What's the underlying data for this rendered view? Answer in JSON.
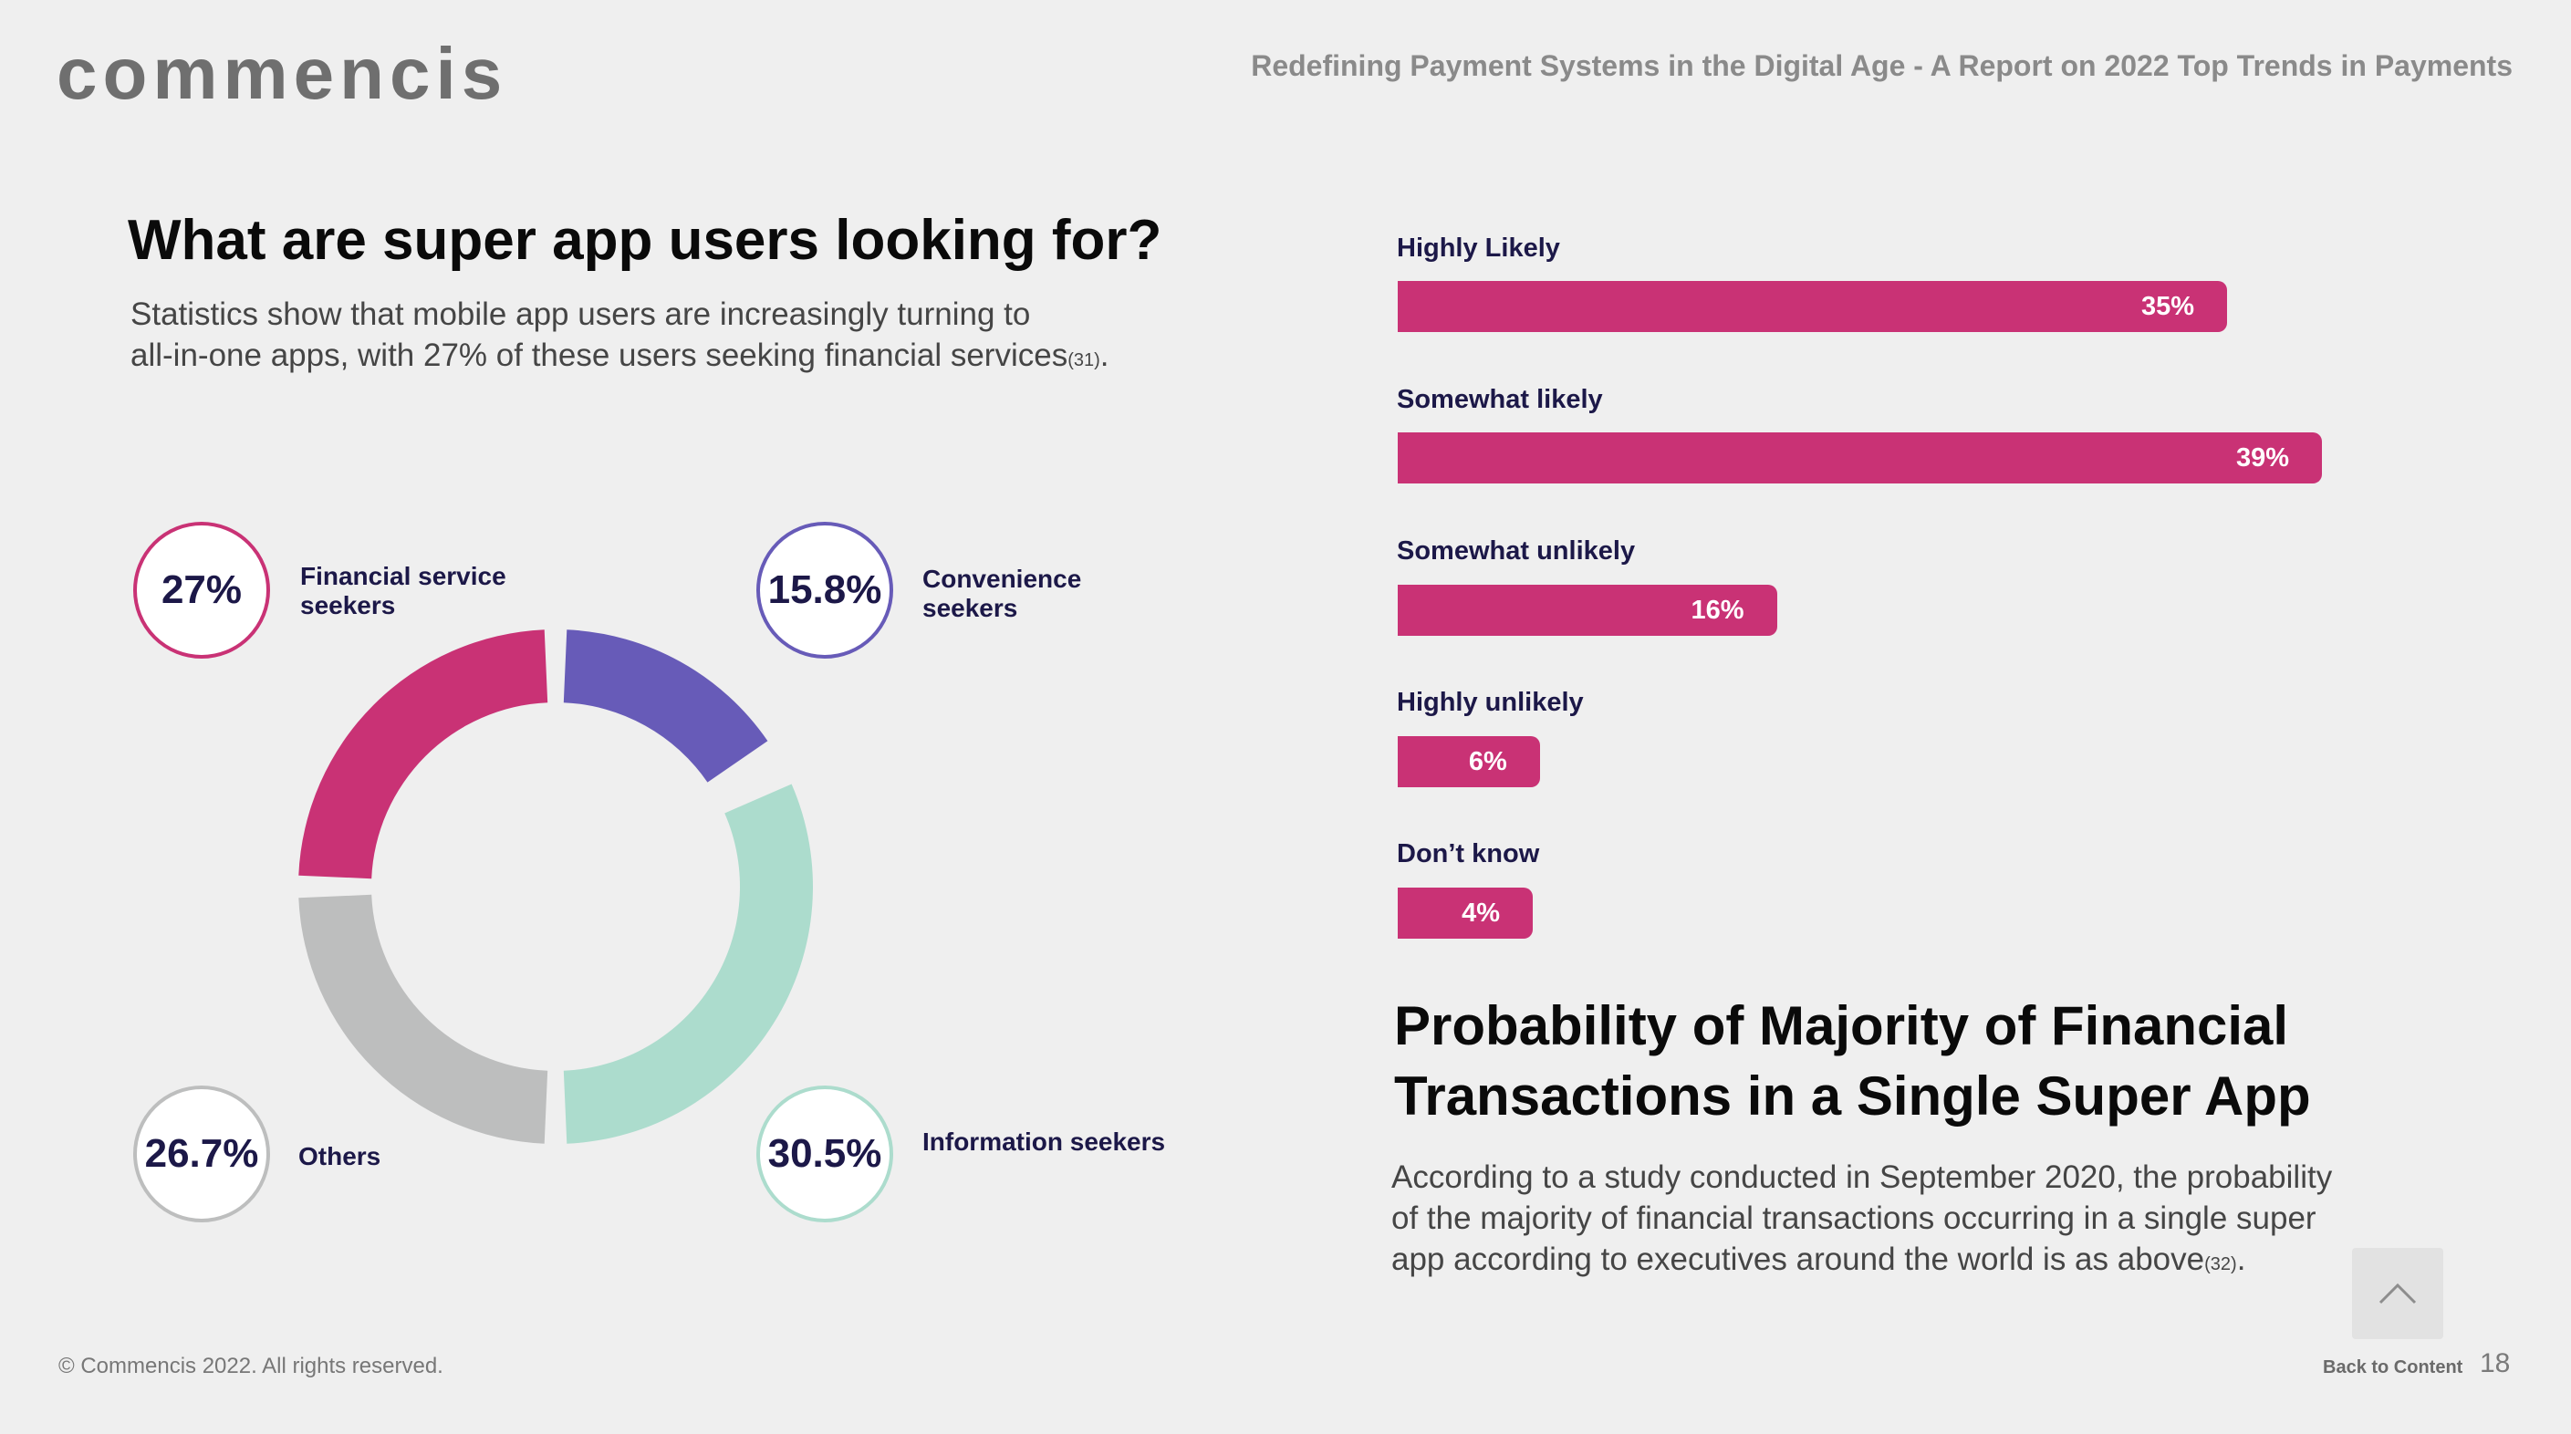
{
  "header": {
    "logo": "commencis",
    "report_title": "Redefining Payment Systems in the Digital Age - A Report on 2022 Top Trends in Payments"
  },
  "left": {
    "heading": "What are super app users looking for?",
    "intro_line1": "Statistics show that mobile app users are increasingly turning to",
    "intro_line2": "all-in-one apps, with 27% of these users seeking financial services",
    "intro_ref": "(31)",
    "intro_end": "."
  },
  "right": {
    "heading_line1": "Probability of Majority of Financial",
    "heading_line2": "Transactions in a Single Super App",
    "text": "According to a study conducted in September 2020, the probability of the majority of financial transactions occurring in a single super app according to executives around the world is as above",
    "text_ref": "(32)",
    "text_end": "."
  },
  "footer": {
    "copyright": "© Commencis 2022. All rights reserved.",
    "back_label": "Back to Content",
    "page_number": "18"
  },
  "colors": {
    "financial": "#c93275",
    "convenience": "#675bb8",
    "information": "#acdccd",
    "others": "#bdbebe"
  },
  "chart_data": [
    {
      "type": "pie",
      "title": "What are super app users looking for?",
      "segments": [
        {
          "label": "Financial service seekers",
          "value": 27,
          "display": "27%"
        },
        {
          "label": "Convenience seekers",
          "value": 15.8,
          "display": "15.8%"
        },
        {
          "label": "Information seekers",
          "value": 30.5,
          "display": "30.5%"
        },
        {
          "label": "Others",
          "value": 26.7,
          "display": "26.7%"
        }
      ]
    },
    {
      "type": "bar",
      "title": "Probability of Majority of Financial Transactions in a Single Super App",
      "categories": [
        "Highly Likely",
        "Somewhat likely",
        "Somewhat unlikely",
        "Highly unlikely",
        "Don’t know"
      ],
      "values": [
        35,
        39,
        16,
        6,
        4
      ],
      "value_labels": [
        "35%",
        "39%",
        "16%",
        "6%",
        "4%"
      ],
      "unit": "%"
    }
  ]
}
